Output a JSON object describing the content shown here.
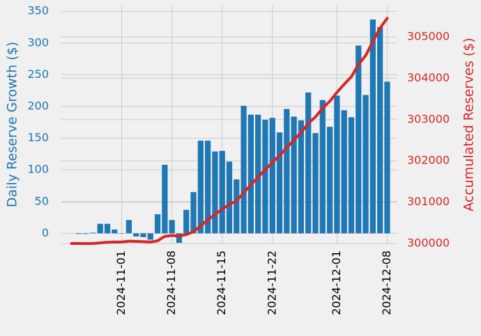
{
  "chart_data": {
    "type": "bar-line",
    "ylabel": "Daily Reserve Growth ($)",
    "y2label": "Accumulated Reserves ($)",
    "x": [
      "2024-10-25",
      "2024-10-26",
      "2024-10-27",
      "2024-10-28",
      "2024-10-29",
      "2024-10-30",
      "2024-10-31",
      "2024-11-01",
      "2024-11-02",
      "2024-11-03",
      "2024-11-04",
      "2024-11-05",
      "2024-11-06",
      "2024-11-07",
      "2024-11-08",
      "2024-11-09",
      "2024-11-10",
      "2024-11-11",
      "2024-11-12",
      "2024-11-13",
      "2024-11-14",
      "2024-11-15",
      "2024-11-16",
      "2024-11-17",
      "2024-11-18",
      "2024-11-19",
      "2024-11-20",
      "2024-11-21",
      "2024-11-22",
      "2024-11-23",
      "2024-11-24",
      "2024-11-25",
      "2024-11-26",
      "2024-11-27",
      "2024-11-28",
      "2024-11-29",
      "2024-11-30",
      "2024-12-01",
      "2024-12-02",
      "2024-12-03",
      "2024-12-04",
      "2024-12-05",
      "2024-12-06",
      "2024-12-07",
      "2024-12-08"
    ],
    "series": [
      {
        "name": "Daily Reserve Growth ($)",
        "kind": "bar",
        "axis": "y",
        "color": "#1f77b4",
        "values": [
          null,
          -1,
          -1,
          1,
          15,
          15,
          6,
          0,
          21,
          -5,
          -6,
          -10,
          30,
          108,
          21,
          -15,
          37,
          65,
          146,
          146,
          129,
          130,
          113,
          85,
          201,
          187,
          187,
          179,
          182,
          159,
          196,
          184,
          178,
          222,
          158,
          210,
          168,
          217,
          194,
          183,
          296,
          218,
          337,
          325,
          239
        ]
      },
      {
        "name": "Accumulated Reserves ($)",
        "kind": "line",
        "axis": "y2",
        "color": "#d62728",
        "values": [
          300000,
          299999,
          299998,
          299999,
          300014,
          300029,
          300035,
          300035,
          300056,
          300051,
          300045,
          300035,
          300065,
          300173,
          300194,
          300179,
          300216,
          300281,
          300427,
          300573,
          300702,
          300832,
          300945,
          301030,
          301231,
          301418,
          301605,
          301784,
          301966,
          302125,
          302321,
          302505,
          302683,
          302905,
          303063,
          303273,
          303441,
          303658,
          303852,
          304035,
          304331,
          304549,
          304886,
          305211,
          305450
        ]
      }
    ],
    "xlim": [
      "2024-10-23T14",
      "2024-12-09T10"
    ],
    "xticks": [
      "2024-11-01",
      "2024-11-08",
      "2024-11-15",
      "2024-11-22",
      "2024-12-01",
      "2024-12-08"
    ],
    "ylim": [
      -16,
      359
    ],
    "yticks": [
      0,
      50,
      100,
      150,
      200,
      250,
      300,
      350
    ],
    "y2lim": [
      300000,
      305758
    ],
    "y2ticks": [
      300000,
      301000,
      302000,
      303000,
      304000,
      305000
    ],
    "grid": true
  }
}
